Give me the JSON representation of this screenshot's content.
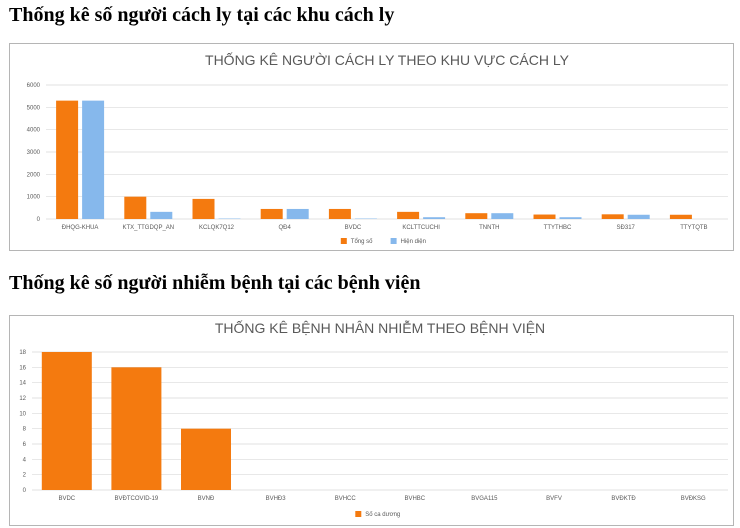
{
  "page": {
    "heading1": "Thống kê số người cách ly tại các khu cách ly",
    "heading2": "Thống kê số người nhiễm bệnh tại các bệnh viện"
  },
  "chart_data": [
    {
      "type": "bar",
      "title": "THỐNG KÊ NGƯỜI CÁCH LY THEO KHU VỰC CÁCH LY",
      "categories": [
        "ĐHQG-KHUA",
        "KTX_TTGDQP_AN",
        "KCLQK7Q12",
        "QĐ4",
        "BVDC",
        "KCLTTCUCHI",
        "TNNTH",
        "TTYTHBC",
        "SĐ317",
        "TTYTQTB"
      ],
      "series": [
        {
          "name": "Tổng số",
          "color": "#f47a0f",
          "values": [
            5300,
            1000,
            900,
            450,
            450,
            320,
            260,
            200,
            210,
            190
          ]
        },
        {
          "name": "Hiện diện",
          "color": "#86b8ec",
          "values": [
            5300,
            320,
            20,
            450,
            20,
            80,
            260,
            80,
            190,
            0
          ]
        }
      ],
      "yticks": [
        "0",
        "1000",
        "2000",
        "3000",
        "4000",
        "5000",
        "6000"
      ],
      "ylim": [
        0,
        6000
      ],
      "grid": true,
      "legend": "bottom"
    },
    {
      "type": "bar",
      "title": "THỐNG KÊ BỆNH NHÂN NHIỄM THEO BỆNH VIỆN",
      "categories": [
        "BVDC",
        "BVĐTCOVID-19",
        "BVNĐ",
        "BVHĐ3",
        "BVHCC",
        "BVHBC",
        "BVGA115",
        "BVFV",
        "BVĐKTĐ",
        "BVĐKSG"
      ],
      "series": [
        {
          "name": "Số ca dương",
          "color": "#f47a0f",
          "values": [
            18,
            16,
            8,
            0,
            0,
            0,
            0,
            0,
            0,
            0
          ]
        }
      ],
      "yticks": [
        "0",
        "2",
        "4",
        "6",
        "8",
        "10",
        "12",
        "14",
        "16",
        "18"
      ],
      "ylim": [
        0,
        18
      ],
      "grid": true,
      "legend": "bottom"
    }
  ]
}
